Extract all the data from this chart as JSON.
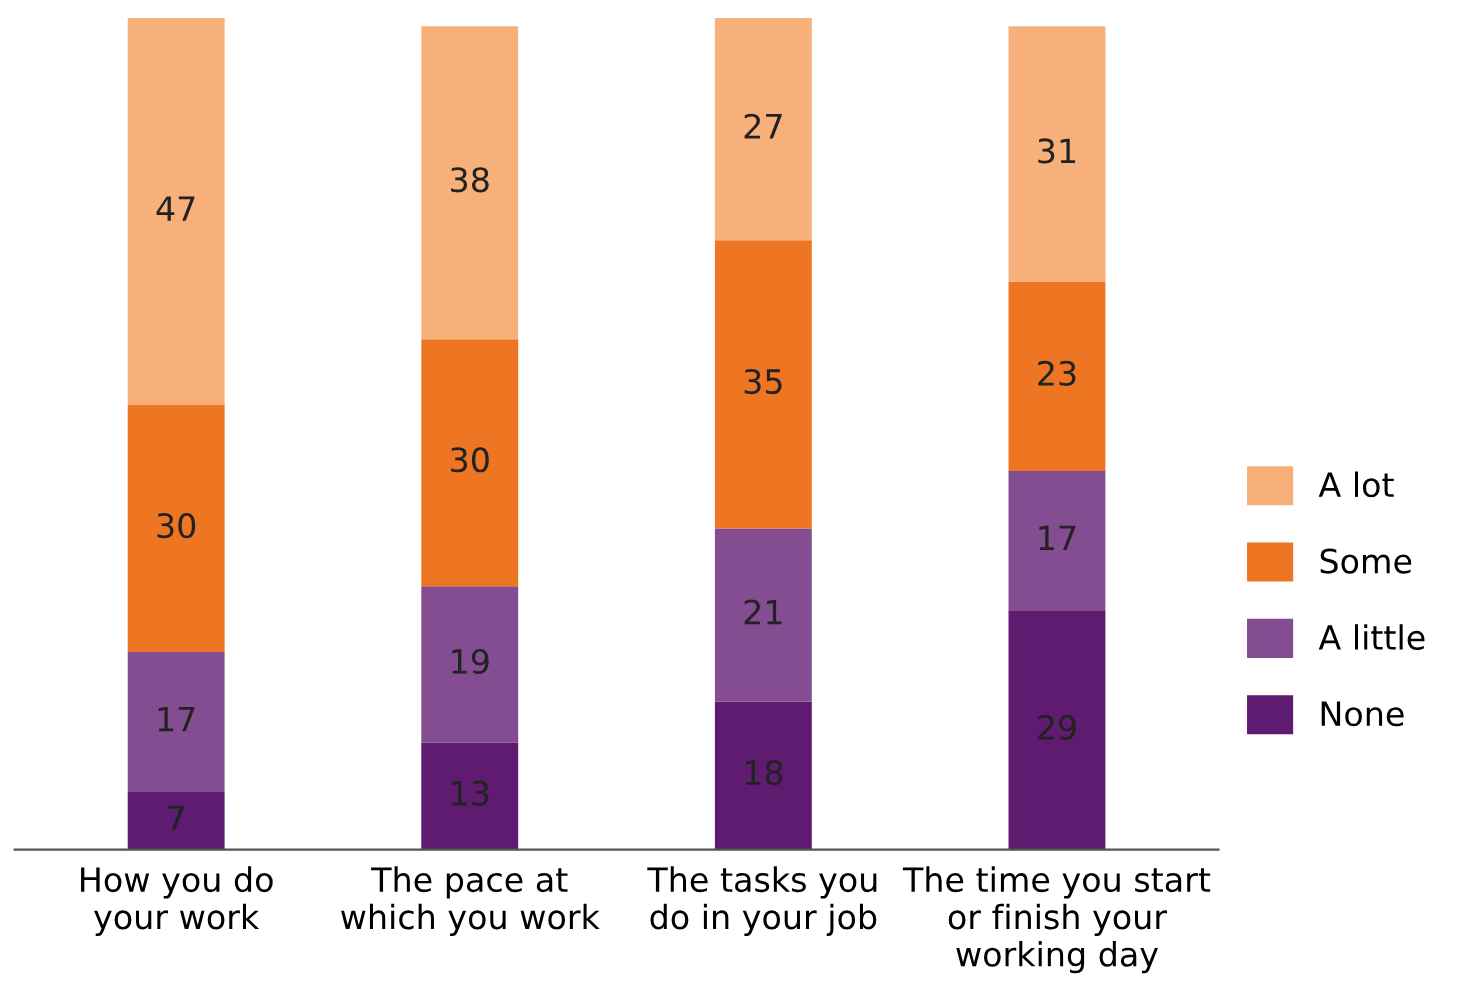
{
  "chart_data": {
    "type": "bar",
    "stacked": true,
    "data_labels": true,
    "legend": "right",
    "grid": false,
    "tick_labels": "x",
    "categories": [
      "How you do\nyour work",
      "The pace at\nwhich you work",
      "The tasks you\ndo in your job",
      "The time you start\nor finish your\nworking day"
    ],
    "ylim": [
      0,
      101
    ],
    "series": [
      {
        "name": "None",
        "color": "#5f1b6f",
        "values": [
          7,
          13,
          18,
          29
        ]
      },
      {
        "name": "A little",
        "color": "#844d91",
        "values": [
          17,
          19,
          21,
          17
        ]
      },
      {
        "name": "Some",
        "color": "#ee7623",
        "values": [
          30,
          30,
          35,
          23
        ]
      },
      {
        "name": "A lot",
        "color": "#f7b07a",
        "values": [
          47,
          38,
          27,
          31
        ]
      }
    ]
  }
}
